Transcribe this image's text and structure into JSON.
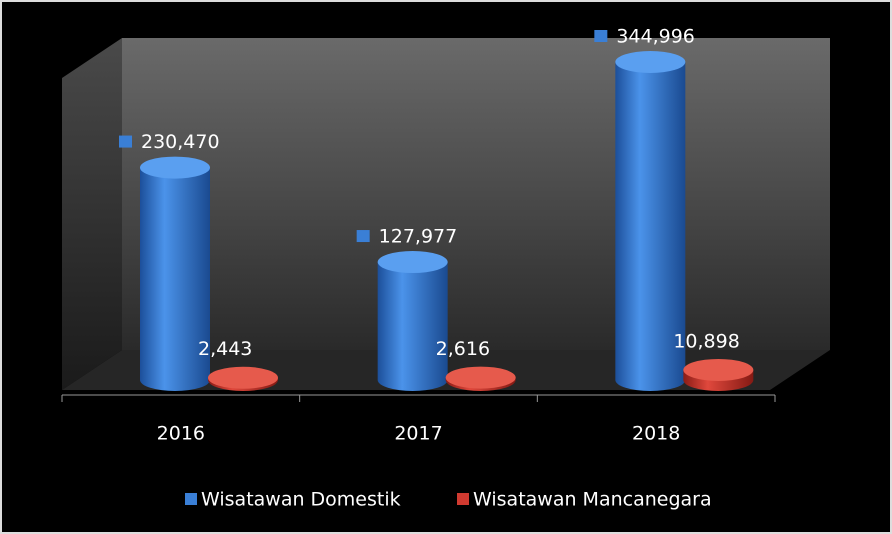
{
  "chart_data": {
    "type": "bar3d",
    "categories": [
      "2016",
      "2017",
      "2018"
    ],
    "series": [
      {
        "name": "Wisatawan Domestik",
        "color": "#3a7fd6",
        "values": [
          230470,
          127977,
          344996
        ],
        "value_labels": [
          "230,470",
          "127,977",
          "344,996"
        ]
      },
      {
        "name": "Wisatawan Mancanegara",
        "color": "#d03a30",
        "values": [
          2443,
          2616,
          10898
        ],
        "value_labels": [
          "2,443",
          "2,616",
          "10,898"
        ]
      }
    ],
    "legend": "bottom"
  }
}
